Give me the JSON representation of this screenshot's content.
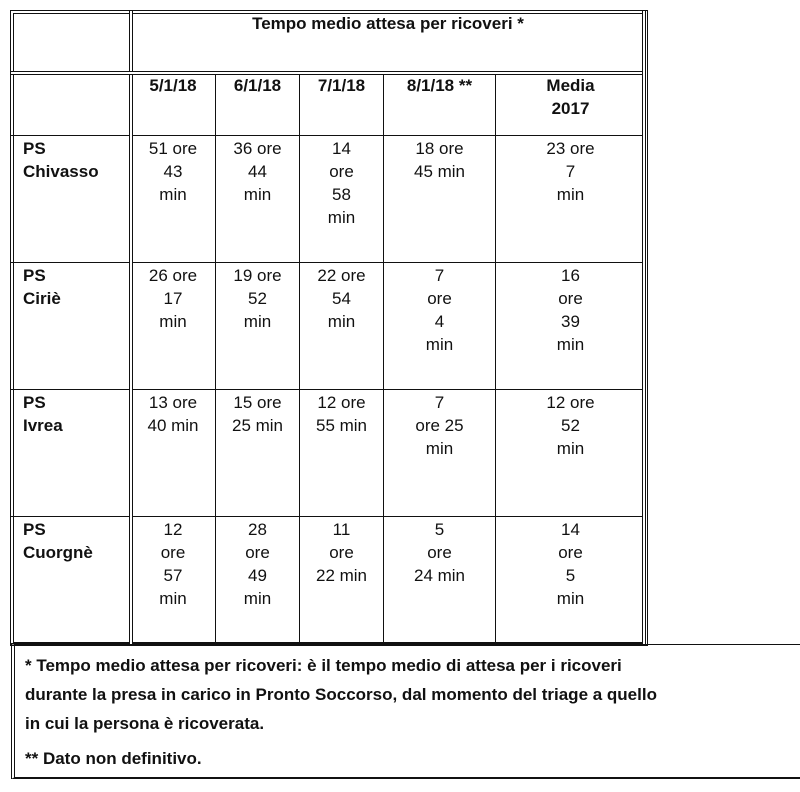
{
  "table": {
    "title": "Tempo medio attesa per ricoveri *",
    "columns": [
      "5/1/18",
      "6/1/18",
      "7/1/18",
      "8/1/18 **",
      "Media\n2017"
    ],
    "rows": [
      {
        "label": "PS\nChivasso",
        "values": [
          "51 ore\n43\nmin",
          "36 ore\n44\nmin",
          "14\nore\n58\nmin",
          "18 ore\n45 min",
          "23 ore\n7\nmin"
        ]
      },
      {
        "label": "PS\nCiriè",
        "values": [
          "26 ore\n17\nmin",
          "19 ore\n52\nmin",
          "22 ore\n54\nmin",
          "7\nore\n4\nmin",
          "16\nore\n39\nmin"
        ]
      },
      {
        "label": "PS\nIvrea",
        "values": [
          "13 ore\n40 min",
          "15 ore\n25 min",
          "12 ore\n55 min",
          "7\nore 25\nmin",
          "12 ore\n52\nmin"
        ]
      },
      {
        "label": "PS\nCuorgnè",
        "values": [
          "12\nore\n57\nmin",
          "28\nore\n49\nmin",
          "11\nore\n22 min",
          "5\nore\n24 min",
          "14\nore\n5\nmin"
        ]
      }
    ]
  },
  "footnotes": {
    "note1": "* Tempo medio attesa per ricoveri: è il tempo medio di attesa per i ricoveri\ndurante la presa in carico in Pronto Soccorso, dal momento del triage a quello\nin cui la persona è ricoverata.",
    "note2": "** Dato non definitivo."
  }
}
